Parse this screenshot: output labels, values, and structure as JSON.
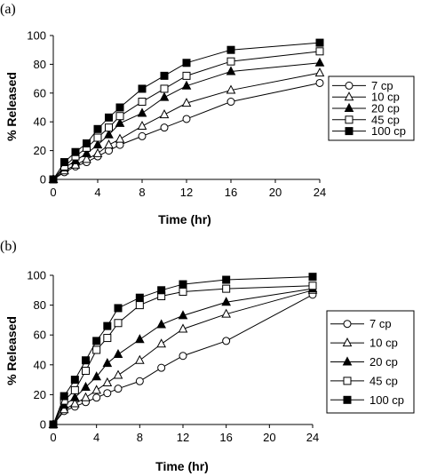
{
  "chart_data": [
    {
      "type": "line",
      "panel_label": "(a)",
      "xlabel": "Time (hr)",
      "ylabel": "% Released",
      "xlim": [
        0,
        24
      ],
      "ylim": [
        0,
        100
      ],
      "xticks": [
        0,
        4,
        8,
        12,
        16,
        20,
        24
      ],
      "yticks": [
        0,
        20,
        40,
        60,
        80,
        100
      ],
      "legend_position": "right",
      "x": [
        0,
        1,
        2,
        3,
        4,
        5,
        6,
        8,
        10,
        12,
        16,
        24
      ],
      "series": [
        {
          "name": "7 cp",
          "marker": "circle-open",
          "values": [
            0,
            5,
            9,
            12,
            16,
            20,
            24,
            30,
            36,
            42,
            54,
            67
          ]
        },
        {
          "name": "10 cp",
          "marker": "triangle-open",
          "values": [
            0,
            6,
            10,
            14,
            18,
            24,
            28,
            37,
            45,
            53,
            62,
            74
          ]
        },
        {
          "name": "20 cp",
          "marker": "triangle-filled",
          "values": [
            0,
            8,
            13,
            18,
            24,
            31,
            39,
            46,
            57,
            65,
            75,
            81
          ]
        },
        {
          "name": "45 cp",
          "marker": "square-open",
          "values": [
            0,
            9,
            16,
            22,
            29,
            36,
            44,
            54,
            63,
            72,
            82,
            89
          ]
        },
        {
          "name": "100 cp",
          "marker": "square-filled",
          "values": [
            0,
            12,
            19,
            25,
            35,
            43,
            50,
            63,
            72,
            81,
            90,
            95
          ]
        }
      ]
    },
    {
      "type": "line",
      "panel_label": "(b)",
      "xlabel": "Time (hr)",
      "ylabel": "% Released",
      "xlim": [
        0,
        24
      ],
      "ylim": [
        0,
        100
      ],
      "xticks": [
        0,
        4,
        8,
        12,
        16,
        20,
        24
      ],
      "yticks": [
        0,
        20,
        40,
        60,
        80,
        100
      ],
      "legend_position": "right",
      "x": [
        0,
        1,
        2,
        3,
        4,
        5,
        6,
        8,
        10,
        12,
        16,
        24
      ],
      "series": [
        {
          "name": "7 cp",
          "marker": "circle-open",
          "values": [
            0,
            9,
            12,
            15,
            18,
            21,
            24,
            29,
            38,
            46,
            56,
            87
          ]
        },
        {
          "name": "10 cp",
          "marker": "triangle-open",
          "values": [
            0,
            10,
            14,
            18,
            23,
            28,
            33,
            43,
            54,
            64,
            74,
            90
          ]
        },
        {
          "name": "20 cp",
          "marker": "triangle-filled",
          "values": [
            0,
            13,
            18,
            25,
            32,
            41,
            47,
            57,
            67,
            73,
            82,
            91
          ]
        },
        {
          "name": "45 cp",
          "marker": "square-open",
          "values": [
            0,
            16,
            23,
            36,
            50,
            58,
            68,
            80,
            86,
            89,
            91,
            93
          ]
        },
        {
          "name": "100 cp",
          "marker": "square-filled",
          "values": [
            0,
            19,
            30,
            43,
            56,
            66,
            78,
            85,
            90,
            94,
            97,
            99
          ]
        }
      ]
    }
  ]
}
